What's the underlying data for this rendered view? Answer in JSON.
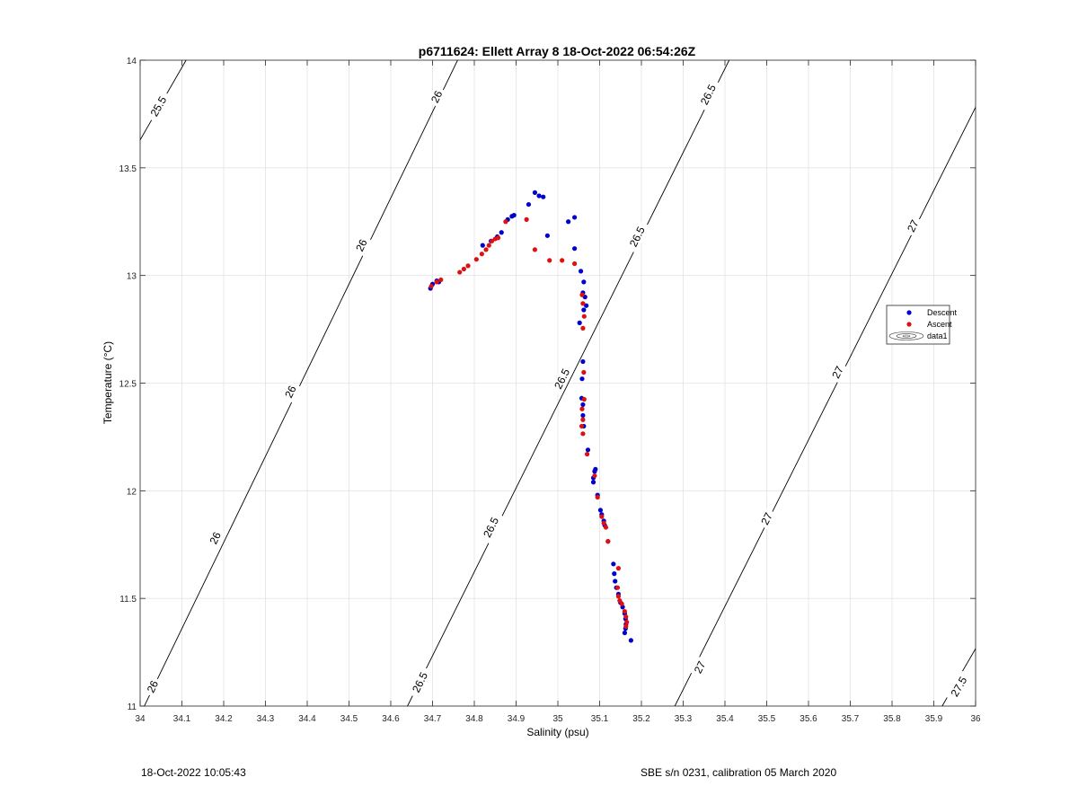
{
  "chart_data": {
    "type": "scatter",
    "title": "p6711624: Ellett Array 8 18-Oct-2022 06:54:26Z",
    "xlabel": "Salinity (psu)",
    "ylabel": "Temperature (°C)",
    "xlim": [
      34,
      36
    ],
    "ylim": [
      11,
      14
    ],
    "xticks": [
      "34",
      "34.1",
      "34.2",
      "34.3",
      "34.4",
      "34.5",
      "34.6",
      "34.7",
      "34.8",
      "34.9",
      "35",
      "35.1",
      "35.2",
      "35.3",
      "35.4",
      "35.5",
      "35.6",
      "35.7",
      "35.8",
      "35.9",
      "36"
    ],
    "yticks": [
      "11",
      "11.5",
      "12",
      "12.5",
      "13",
      "13.5",
      "14"
    ],
    "grid": true,
    "legend_position": "right",
    "series": [
      {
        "name": "Descent",
        "color": "#0000cc",
        "points": [
          [
            34.695,
            12.94
          ],
          [
            34.7,
            12.96
          ],
          [
            34.71,
            12.975
          ],
          [
            34.715,
            12.97
          ],
          [
            34.82,
            13.14
          ],
          [
            34.84,
            13.16
          ],
          [
            34.855,
            13.18
          ],
          [
            34.865,
            13.2
          ],
          [
            34.88,
            13.26
          ],
          [
            34.89,
            13.275
          ],
          [
            34.895,
            13.28
          ],
          [
            34.93,
            13.33
          ],
          [
            34.945,
            13.385
          ],
          [
            34.955,
            13.37
          ],
          [
            34.965,
            13.365
          ],
          [
            34.975,
            13.185
          ],
          [
            35.025,
            13.25
          ],
          [
            35.04,
            13.27
          ],
          [
            35.04,
            13.125
          ],
          [
            35.055,
            13.02
          ],
          [
            35.062,
            12.97
          ],
          [
            35.06,
            12.92
          ],
          [
            35.065,
            12.9
          ],
          [
            35.068,
            12.86
          ],
          [
            35.062,
            12.84
          ],
          [
            35.052,
            12.78
          ],
          [
            35.06,
            12.6
          ],
          [
            35.058,
            12.52
          ],
          [
            35.057,
            12.43
          ],
          [
            35.06,
            12.4
          ],
          [
            35.06,
            12.35
          ],
          [
            35.062,
            12.3
          ],
          [
            35.072,
            12.19
          ],
          [
            35.088,
            12.09
          ],
          [
            35.09,
            12.1
          ],
          [
            35.085,
            12.06
          ],
          [
            35.085,
            12.04
          ],
          [
            35.095,
            11.98
          ],
          [
            35.102,
            11.91
          ],
          [
            35.105,
            11.89
          ],
          [
            35.11,
            11.86
          ],
          [
            35.112,
            11.84
          ],
          [
            35.12,
            11.765
          ],
          [
            35.133,
            11.66
          ],
          [
            35.135,
            11.615
          ],
          [
            35.137,
            11.58
          ],
          [
            35.14,
            11.55
          ],
          [
            35.145,
            11.52
          ],
          [
            35.15,
            11.48
          ],
          [
            35.155,
            11.46
          ],
          [
            35.16,
            11.43
          ],
          [
            35.162,
            11.405
          ],
          [
            35.163,
            11.38
          ],
          [
            35.162,
            11.36
          ],
          [
            35.16,
            11.34
          ],
          [
            35.175,
            11.305
          ]
        ]
      },
      {
        "name": "Ascent",
        "color": "#dd1111",
        "points": [
          [
            34.697,
            12.95
          ],
          [
            34.71,
            12.97
          ],
          [
            34.72,
            12.98
          ],
          [
            34.765,
            13.015
          ],
          [
            34.775,
            13.03
          ],
          [
            34.785,
            13.045
          ],
          [
            34.805,
            13.075
          ],
          [
            34.818,
            13.1
          ],
          [
            34.828,
            13.12
          ],
          [
            34.835,
            13.14
          ],
          [
            34.842,
            13.16
          ],
          [
            34.85,
            13.17
          ],
          [
            34.857,
            13.175
          ],
          [
            34.875,
            13.25
          ],
          [
            34.925,
            13.26
          ],
          [
            34.945,
            13.12
          ],
          [
            34.98,
            13.07
          ],
          [
            35.01,
            13.07
          ],
          [
            35.04,
            13.055
          ],
          [
            35.058,
            12.91
          ],
          [
            35.06,
            12.87
          ],
          [
            35.063,
            12.81
          ],
          [
            35.06,
            12.755
          ],
          [
            35.062,
            12.55
          ],
          [
            35.063,
            12.425
          ],
          [
            35.058,
            12.38
          ],
          [
            35.06,
            12.33
          ],
          [
            35.057,
            12.3
          ],
          [
            35.06,
            12.265
          ],
          [
            35.07,
            12.17
          ],
          [
            35.088,
            12.07
          ],
          [
            35.095,
            11.97
          ],
          [
            35.105,
            11.88
          ],
          [
            35.11,
            11.85
          ],
          [
            35.115,
            11.83
          ],
          [
            35.12,
            11.765
          ],
          [
            35.145,
            11.64
          ],
          [
            35.143,
            11.55
          ],
          [
            35.145,
            11.51
          ],
          [
            35.148,
            11.49
          ],
          [
            35.153,
            11.475
          ],
          [
            35.16,
            11.44
          ],
          [
            35.163,
            11.415
          ],
          [
            35.165,
            11.39
          ],
          [
            35.163,
            11.37
          ]
        ]
      }
    ],
    "legend": [
      "Descent",
      "Ascent",
      "data1"
    ],
    "contours": [
      {
        "level": 25.5,
        "label": "25.5",
        "from": [
          33.99,
          13.596
        ],
        "to": [
          34.11,
          14.0
        ],
        "labels": [
          [
            34.044,
            13.785
          ]
        ]
      },
      {
        "level": 26.0,
        "label": "26",
        "from": [
          34.0,
          10.96
        ],
        "to": [
          34.76,
          14.0
        ],
        "labels": [
          [
            34.03,
            11.09
          ],
          [
            34.18,
            11.78
          ],
          [
            34.36,
            12.46
          ],
          [
            34.53,
            13.14
          ],
          [
            34.71,
            13.83
          ]
        ]
      },
      {
        "level": 26.5,
        "label": "26.5",
        "from": [
          34.64,
          11.0
        ],
        "to": [
          35.41,
          14.0
        ],
        "labels": [
          [
            34.67,
            11.11
          ],
          [
            34.84,
            11.83
          ],
          [
            35.01,
            12.52
          ],
          [
            35.19,
            13.18
          ],
          [
            35.36,
            13.84
          ]
        ]
      },
      {
        "level": 27.0,
        "label": "27",
        "from": [
          35.28,
          11.0
        ],
        "to": [
          36.01,
          13.82
        ],
        "labels": [
          [
            35.34,
            11.18
          ],
          [
            35.5,
            11.87
          ],
          [
            35.67,
            12.55
          ],
          [
            35.85,
            13.23
          ]
        ]
      },
      {
        "level": 27.5,
        "label": "27.5",
        "from": [
          35.92,
          11.0
        ],
        "to": [
          36.01,
          11.3
        ],
        "labels": [
          [
            35.96,
            11.09
          ]
        ]
      }
    ]
  },
  "footer": {
    "left": "18-Oct-2022 10:05:43",
    "right": "SBE s/n 0231, calibration 05 March 2020"
  }
}
